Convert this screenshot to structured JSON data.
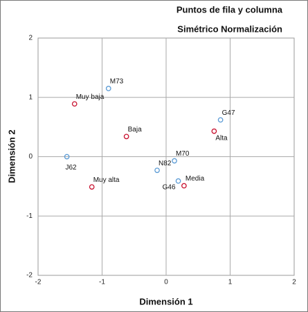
{
  "chart_data": {
    "type": "scatter",
    "title": "Puntos de fila y columna",
    "subtitle": "Simétrico Normalización",
    "xlabel": "Dimensión 1",
    "ylabel": "Dimensión 2",
    "xlim": [
      -2,
      2
    ],
    "ylim": [
      -2,
      2
    ],
    "xticks": [
      -2,
      -1,
      0,
      1,
      2
    ],
    "yticks": [
      -2,
      -1,
      0,
      1,
      2
    ],
    "grid": true,
    "series": [
      {
        "color": "#5b9bd5",
        "labels": [
          "M73",
          "G47",
          "J62",
          "M70",
          "N82",
          "G46"
        ],
        "x": [
          -0.9,
          0.85,
          -1.55,
          0.13,
          -0.14,
          0.19
        ],
        "values": [
          1.15,
          0.62,
          0,
          -0.07,
          -0.23,
          -0.41
        ]
      },
      {
        "color": "#c8102e",
        "labels": [
          "Muy baja",
          "Baja",
          "Alta",
          "Muy alta",
          "Media"
        ],
        "x": [
          -1.43,
          -0.62,
          0.75,
          -1.16,
          0.28
        ],
        "values": [
          0.89,
          0.34,
          0.43,
          -0.51,
          -0.49
        ]
      }
    ]
  }
}
